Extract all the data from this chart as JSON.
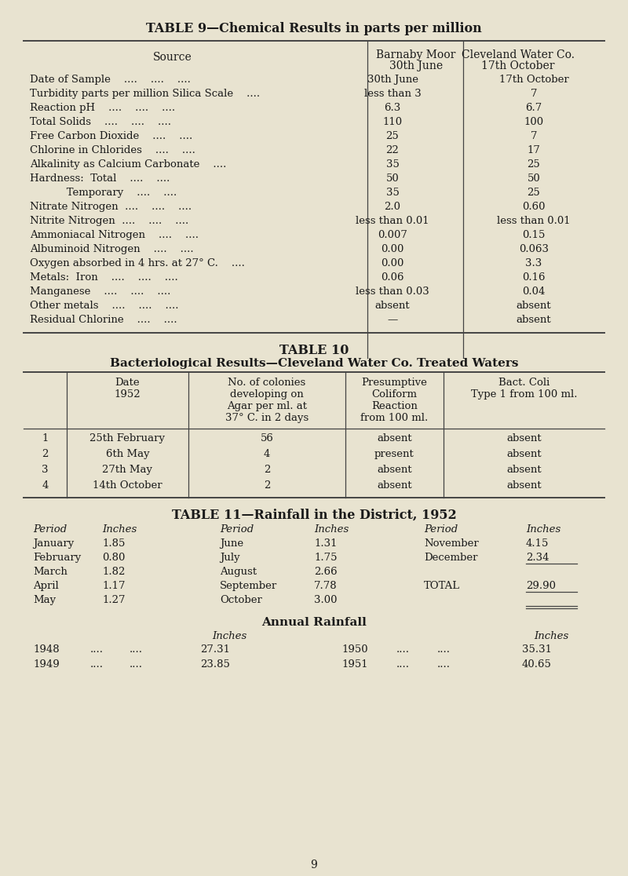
{
  "bg_color": "#e8e3d0",
  "text_color": "#1a1a1a",
  "title9": "TABLE 9—Chemical Results in parts per million",
  "title10": "TABLE 10",
  "subtitle10": "Bacteriological Results—Cleveland Water Co. Treated Waters",
  "title11": "TABLE 11—Rainfall in the District, 1952",
  "annual_title": "Annual Rainfall",
  "page_number": "9",
  "t9_label_rows": [
    "Date of Sample    ....    ....    ....",
    "Turbidity parts per million Silica Scale    ....",
    "Reaction pH    ....    ....    ....",
    "Total Solids    ....    ....    ....",
    "Free Carbon Dioxide    ....    ....",
    "Chlorine in Chlorides    ....    ....",
    "Alkalinity as Calcium Carbonate    ....",
    "Hardness:  Total    ....    ....",
    "           Temporary    ....    ....",
    "Nitrate Nitrogen  ....    ....    ....",
    "Nitrite Nitrogen  ....    ....    ....",
    "Ammoniacal Nitrogen    ....    ....",
    "Albuminoid Nitrogen    ....    ....",
    "Oxygen absorbed in 4 hrs. at 27° C.    ....",
    "Metals:  Iron    ....    ....    ....",
    "Manganese    ....    ....    ....",
    "Other metals    ....    ....    ....",
    "Residual Chlorine    ....    ...."
  ],
  "t9_col1": [
    "30th June",
    "less than 3",
    "6.3",
    "110",
    "25",
    "22",
    "35",
    "50",
    "35",
    "2.0",
    "less than 0.01",
    "0.007",
    "0.00",
    "0.00",
    "0.06",
    "less than 0.03",
    "absent",
    "—"
  ],
  "t9_col2": [
    "17th October",
    "7",
    "6.7",
    "100",
    "7",
    "17",
    "25",
    "50",
    "25",
    "0.60",
    "less than 0.01",
    "0.15",
    "0.063",
    "3.3",
    "0.16",
    "0.04",
    "absent",
    "absent"
  ],
  "t10_rows": [
    [
      "1",
      "25th February",
      "56",
      "absent",
      "absent"
    ],
    [
      "2",
      "6th May",
      "4",
      "present",
      "absent"
    ],
    [
      "3",
      "27th May",
      "2",
      "absent",
      "absent"
    ],
    [
      "4",
      "14th October",
      "2",
      "absent",
      "absent"
    ]
  ],
  "rainfall_rows": [
    [
      "January",
      "1.85",
      "June",
      "1.31",
      "November",
      "4.15"
    ],
    [
      "February",
      "0.80",
      "July",
      "1.75",
      "December",
      "2.34"
    ],
    [
      "March",
      "1.82",
      "August",
      "2.66",
      "",
      ""
    ],
    [
      "April",
      "1.17",
      "September",
      "7.78",
      "TOTAL",
      "29.90"
    ],
    [
      "May",
      "1.27",
      "October",
      "3.00",
      "",
      ""
    ]
  ],
  "annual_rows": [
    [
      "1948",
      "27.31",
      "1950",
      "35.31"
    ],
    [
      "1949",
      "23.85",
      "1951",
      "40.65"
    ]
  ]
}
